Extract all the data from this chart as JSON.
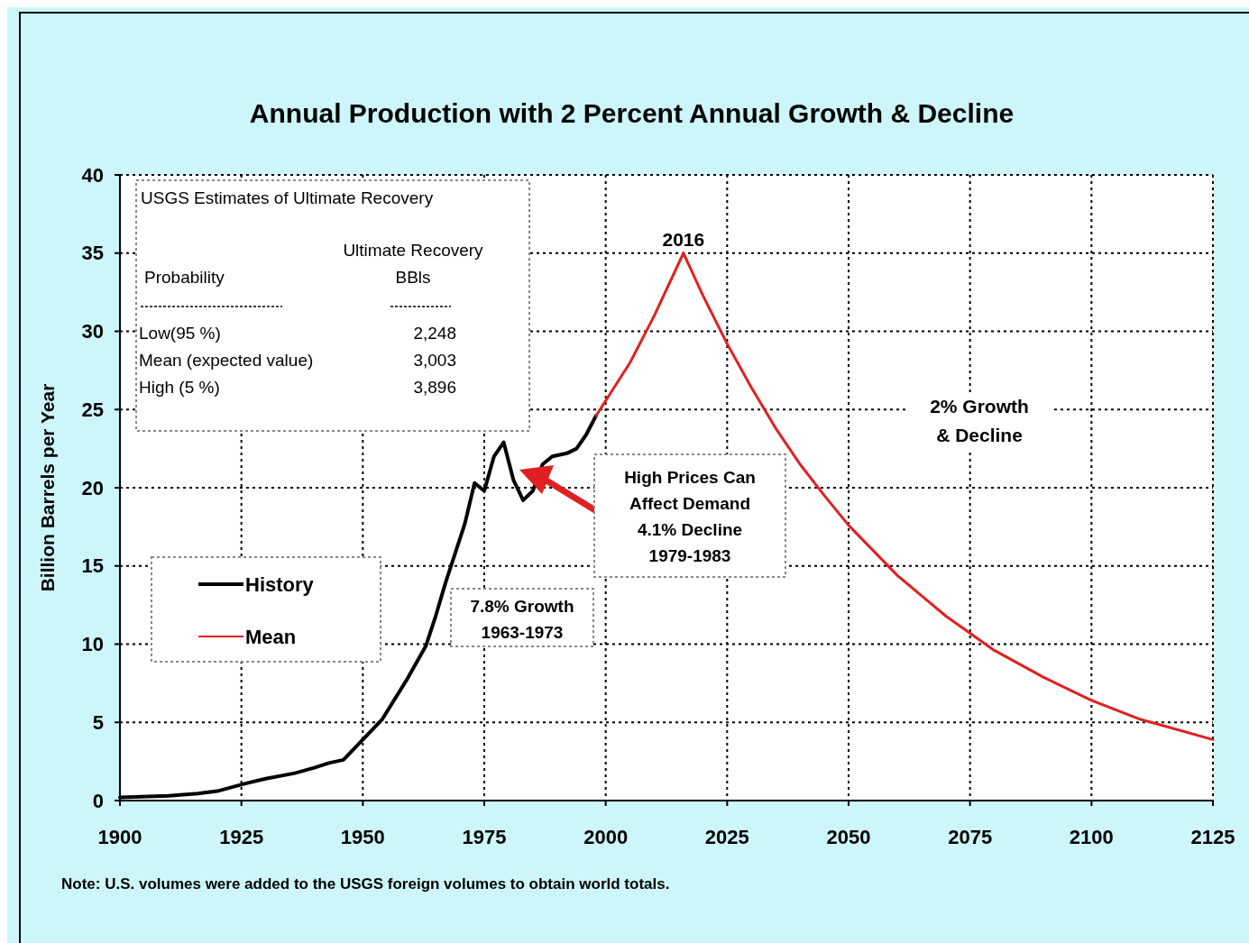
{
  "chart_data": {
    "type": "line",
    "title": "Annual Production with 2 Percent Annual Growth & Decline",
    "ylabel": "Billion Barrels per Year",
    "xlim": [
      1900,
      2125
    ],
    "xticks": [
      1900,
      1925,
      1950,
      1975,
      2000,
      2025,
      2050,
      2075,
      2100,
      2125
    ],
    "ylim": [
      0,
      40
    ],
    "yticks": [
      0,
      5,
      10,
      15,
      20,
      25,
      30,
      35,
      40
    ],
    "grid": true,
    "legend": "left",
    "line_style": "solid",
    "series": [
      {
        "name": "History",
        "color": "#000000",
        "x": [
          1900,
          1910,
          1916,
          1920,
          1926,
          1930,
          1936,
          1940,
          1943,
          1946,
          1950,
          1954,
          1959,
          1963,
          1965,
          1967,
          1969,
          1971,
          1973,
          1975,
          1977,
          1979,
          1981,
          1983,
          1985,
          1987,
          1989,
          1992,
          1994,
          1996,
          1998
        ],
        "values": [
          0.2,
          0.3,
          0.45,
          0.6,
          1.1,
          1.4,
          1.75,
          2.1,
          2.4,
          2.6,
          3.9,
          5.2,
          7.7,
          9.9,
          11.8,
          13.9,
          15.8,
          17.7,
          20.3,
          19.8,
          22.0,
          22.9,
          20.5,
          19.2,
          19.8,
          21.5,
          22.0,
          22.2,
          22.5,
          23.4,
          24.6
        ]
      },
      {
        "name": "Mean",
        "color": "#e02020",
        "x": [
          1998,
          2005,
          2010,
          2016,
          2020,
          2025,
          2030,
          2035,
          2040,
          2045,
          2050,
          2060,
          2070,
          2080,
          2090,
          2100,
          2110,
          2125
        ],
        "values": [
          24.6,
          28.0,
          31.0,
          35.0,
          32.3,
          29.2,
          26.4,
          23.8,
          21.5,
          19.5,
          17.6,
          14.4,
          11.8,
          9.6,
          7.9,
          6.4,
          5.2,
          3.9
        ]
      }
    ],
    "annotations": [
      {
        "text": "2016",
        "x": 2016,
        "y": 35
      },
      "2% Growth\n& Decline",
      "7.8% Growth\n1963-1973",
      "High Prices Can\nAffect Demand\n4.1% Decline\n1979-1983",
      "USGS Estimates of Ultimate Recovery",
      "Ultimate Recovery\nBBls",
      "Probability",
      "Low(95 %)",
      "Mean (expected value)",
      "High (5 %)",
      "2,248",
      "3,003",
      "3,896",
      "Note:  U.S. volumes were added to the USGS foreign volumes to obtain world totals."
    ]
  }
}
